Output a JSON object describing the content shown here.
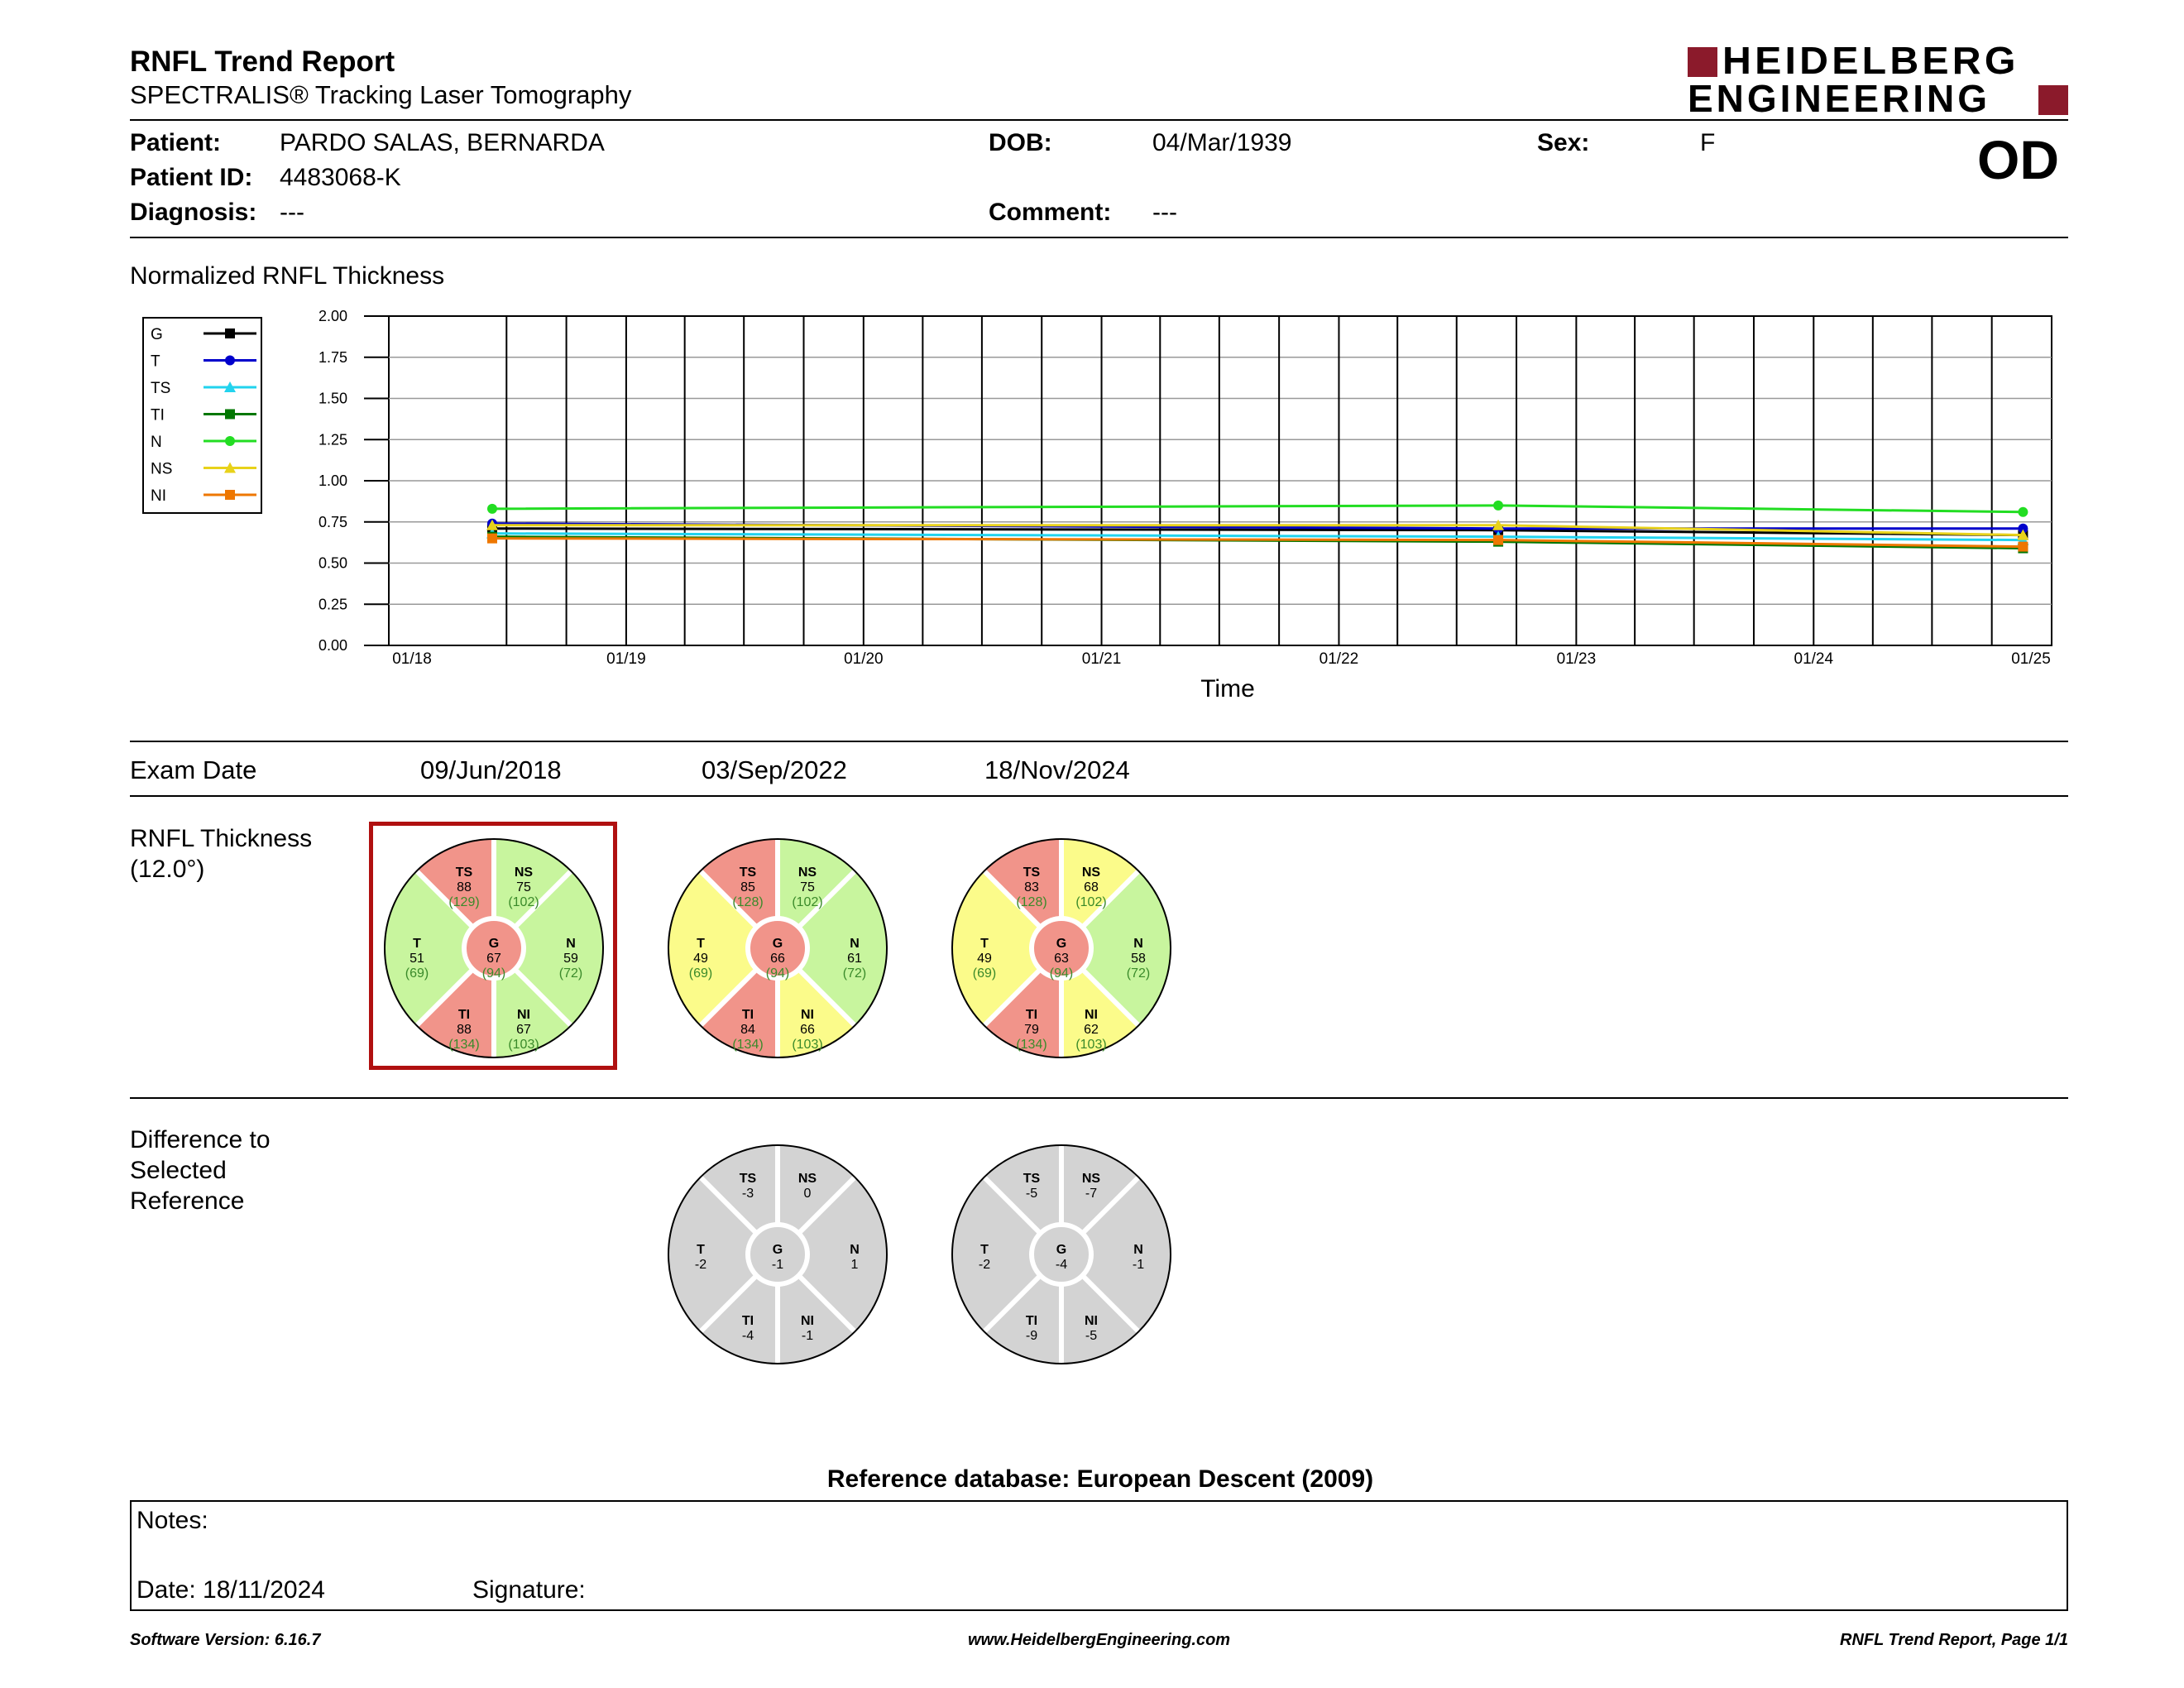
{
  "header": {
    "title": "RNFL Trend Report",
    "subtitle": "SPECTRALIS® Tracking Laser Tomography",
    "logo_line1": "HEIDELBERG",
    "logo_line2": "ENGINEERING",
    "logo_color": "#8b1a2b",
    "eye": "OD"
  },
  "patient": {
    "name_label": "Patient:",
    "name": "PARDO SALAS, BERNARDA",
    "id_label": "Patient ID:",
    "id": "4483068-K",
    "diagnosis_label": "Diagnosis:",
    "diagnosis": "---",
    "dob_label": "DOB:",
    "dob": "04/Mar/1939",
    "comment_label": "Comment:",
    "comment": "---",
    "sex_label": "Sex:",
    "sex": "F"
  },
  "chart_title": "Normalized RNFL Thickness",
  "chart_data": {
    "type": "line",
    "xlabel": "Time",
    "ylabel": "",
    "ylim": [
      0,
      2
    ],
    "x_ticks": [
      "01/18",
      "01/19",
      "01/20",
      "01/21",
      "01/22",
      "01/23",
      "01/24",
      "01/25"
    ],
    "y_ticks": [
      "0.00",
      "0.25",
      "0.50",
      "0.75",
      "1.00",
      "1.25",
      "1.50",
      "1.75",
      "2.00"
    ],
    "x": [
      "2018-06-09",
      "2022-09-03",
      "2024-11-18"
    ],
    "grid": true,
    "legend_position": "left",
    "series": [
      {
        "name": "G",
        "color": "#000000",
        "marker": "square",
        "values": [
          0.71,
          0.7,
          0.67
        ]
      },
      {
        "name": "T",
        "color": "#0000cc",
        "marker": "circle",
        "values": [
          0.74,
          0.71,
          0.71
        ]
      },
      {
        "name": "TS",
        "color": "#22d3ee",
        "marker": "triangle",
        "values": [
          0.68,
          0.66,
          0.64
        ]
      },
      {
        "name": "TI",
        "color": "#007700",
        "marker": "square",
        "values": [
          0.66,
          0.63,
          0.59
        ]
      },
      {
        "name": "N",
        "color": "#22dd22",
        "marker": "circle",
        "values": [
          0.83,
          0.85,
          0.81
        ]
      },
      {
        "name": "NS",
        "color": "#e8d21a",
        "marker": "triangle",
        "values": [
          0.73,
          0.73,
          0.67
        ]
      },
      {
        "name": "NI",
        "color": "#ee7700",
        "marker": "square",
        "values": [
          0.65,
          0.64,
          0.6
        ]
      }
    ]
  },
  "exam": {
    "label": "Exam Date",
    "dates": [
      "09/Jun/2018",
      "03/Sep/2022",
      "18/Nov/2024"
    ]
  },
  "rnfl_label_line1": "RNFL Thickness",
  "rnfl_label_line2": "(12.0°)",
  "rnfl_colors": {
    "red": "#f1948a",
    "green": "#c8f59e",
    "yellow": "#fbfb8a",
    "normal_text": "#3a8a2a"
  },
  "rnfl_exams": [
    {
      "selected": true,
      "sectors": {
        "TS": {
          "value": "88",
          "normal": "(129)",
          "status": "red"
        },
        "NS": {
          "value": "75",
          "normal": "(102)",
          "status": "green"
        },
        "T": {
          "value": "51",
          "normal": "(69)",
          "status": "green"
        },
        "N": {
          "value": "59",
          "normal": "(72)",
          "status": "green"
        },
        "TI": {
          "value": "88",
          "normal": "(134)",
          "status": "red"
        },
        "NI": {
          "value": "67",
          "normal": "(103)",
          "status": "green"
        },
        "G": {
          "value": "67",
          "normal": "(94)",
          "status": "red"
        }
      }
    },
    {
      "selected": false,
      "sectors": {
        "TS": {
          "value": "85",
          "normal": "(128)",
          "status": "red"
        },
        "NS": {
          "value": "75",
          "normal": "(102)",
          "status": "green"
        },
        "T": {
          "value": "49",
          "normal": "(69)",
          "status": "yellow"
        },
        "N": {
          "value": "61",
          "normal": "(72)",
          "status": "green"
        },
        "TI": {
          "value": "84",
          "normal": "(134)",
          "status": "red"
        },
        "NI": {
          "value": "66",
          "normal": "(103)",
          "status": "yellow"
        },
        "G": {
          "value": "66",
          "normal": "(94)",
          "status": "red"
        }
      }
    },
    {
      "selected": false,
      "sectors": {
        "TS": {
          "value": "83",
          "normal": "(128)",
          "status": "red"
        },
        "NS": {
          "value": "68",
          "normal": "(102)",
          "status": "yellow"
        },
        "T": {
          "value": "49",
          "normal": "(69)",
          "status": "yellow"
        },
        "N": {
          "value": "58",
          "normal": "(72)",
          "status": "green"
        },
        "TI": {
          "value": "79",
          "normal": "(134)",
          "status": "red"
        },
        "NI": {
          "value": "62",
          "normal": "(103)",
          "status": "yellow"
        },
        "G": {
          "value": "63",
          "normal": "(94)",
          "status": "red"
        }
      }
    }
  ],
  "diff_label_line1": "Difference to",
  "diff_label_line2": "Selected",
  "diff_label_line3": "Reference",
  "diff_color": "#d3d3d3",
  "diff_exams": [
    {
      "TS": "-3",
      "NS": "0",
      "T": "-2",
      "N": "1",
      "TI": "-4",
      "NI": "-1",
      "G": "-1"
    },
    {
      "TS": "-5",
      "NS": "-7",
      "T": "-2",
      "N": "-1",
      "TI": "-9",
      "NI": "-5",
      "G": "-4"
    }
  ],
  "reference_db": "Reference database: European Descent (2009)",
  "notes": {
    "notes_label": "Notes:",
    "date_label": "Date: 18/11/2024",
    "signature_label": "Signature:"
  },
  "footer": {
    "left": "Software Version: 6.16.7",
    "center": "www.HeidelbergEngineering.com",
    "right": "RNFL Trend Report, Page 1/1"
  }
}
